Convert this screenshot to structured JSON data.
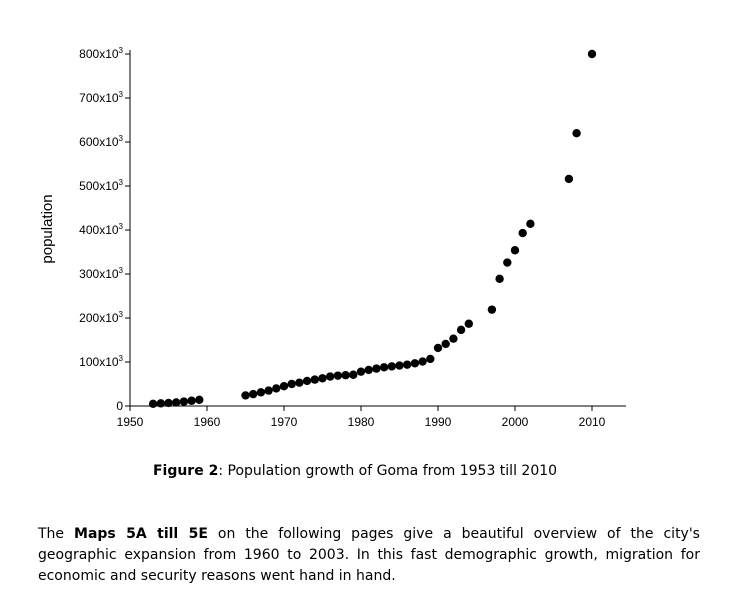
{
  "chart_data": {
    "type": "scatter",
    "title": "",
    "xlabel": "",
    "ylabel": "population",
    "xlim": [
      1950,
      2015
    ],
    "ylim": [
      0,
      800000
    ],
    "grid": false,
    "legend": "none",
    "marker_color": "#000000",
    "x_ticks": [
      1950,
      1960,
      1970,
      1980,
      1990,
      2000,
      2010
    ],
    "y_ticks": [
      {
        "value": 0,
        "mantissa": "0",
        "suffix": ""
      },
      {
        "value": 100000,
        "mantissa": "100",
        "suffix": "x10"
      },
      {
        "value": 200000,
        "mantissa": "200",
        "suffix": "x10"
      },
      {
        "value": 300000,
        "mantissa": "300",
        "suffix": "x10"
      },
      {
        "value": 400000,
        "mantissa": "400",
        "suffix": "x10"
      },
      {
        "value": 500000,
        "mantissa": "500",
        "suffix": "x10"
      },
      {
        "value": 600000,
        "mantissa": "600",
        "suffix": "x10"
      },
      {
        "value": 700000,
        "mantissa": "700",
        "suffix": "x10"
      },
      {
        "value": 800000,
        "mantissa": "800",
        "suffix": "x10"
      }
    ],
    "y_tick_exponent": "3",
    "points": [
      {
        "x": 1953,
        "y": 5000
      },
      {
        "x": 1954,
        "y": 6000
      },
      {
        "x": 1955,
        "y": 7000
      },
      {
        "x": 1956,
        "y": 8000
      },
      {
        "x": 1957,
        "y": 10000
      },
      {
        "x": 1958,
        "y": 12000
      },
      {
        "x": 1959,
        "y": 14000
      },
      {
        "x": 1965,
        "y": 24000
      },
      {
        "x": 1966,
        "y": 27000
      },
      {
        "x": 1967,
        "y": 31000
      },
      {
        "x": 1968,
        "y": 35000
      },
      {
        "x": 1969,
        "y": 40000
      },
      {
        "x": 1970,
        "y": 45000
      },
      {
        "x": 1971,
        "y": 50000
      },
      {
        "x": 1972,
        "y": 53000
      },
      {
        "x": 1973,
        "y": 57000
      },
      {
        "x": 1974,
        "y": 60000
      },
      {
        "x": 1975,
        "y": 63000
      },
      {
        "x": 1976,
        "y": 67000
      },
      {
        "x": 1977,
        "y": 69000
      },
      {
        "x": 1978,
        "y": 70000
      },
      {
        "x": 1979,
        "y": 71000
      },
      {
        "x": 1980,
        "y": 78000
      },
      {
        "x": 1981,
        "y": 82000
      },
      {
        "x": 1982,
        "y": 85000
      },
      {
        "x": 1983,
        "y": 88000
      },
      {
        "x": 1984,
        "y": 90000
      },
      {
        "x": 1985,
        "y": 92000
      },
      {
        "x": 1986,
        "y": 94000
      },
      {
        "x": 1987,
        "y": 97000
      },
      {
        "x": 1988,
        "y": 101000
      },
      {
        "x": 1989,
        "y": 107000
      },
      {
        "x": 1990,
        "y": 132000
      },
      {
        "x": 1991,
        "y": 141000
      },
      {
        "x": 1992,
        "y": 153000
      },
      {
        "x": 1993,
        "y": 173000
      },
      {
        "x": 1994,
        "y": 187000
      },
      {
        "x": 1997,
        "y": 219000
      },
      {
        "x": 1998,
        "y": 289000
      },
      {
        "x": 1999,
        "y": 326000
      },
      {
        "x": 2000,
        "y": 354000
      },
      {
        "x": 2001,
        "y": 393000
      },
      {
        "x": 2002,
        "y": 414000
      },
      {
        "x": 2007,
        "y": 516000
      },
      {
        "x": 2008,
        "y": 620000
      },
      {
        "x": 2010,
        "y": 800000
      }
    ]
  },
  "caption": {
    "label": "Figure 2",
    "text": ": Population growth of Goma from 1953 till 2010"
  },
  "paragraph": {
    "intro": "The ",
    "bold": "Maps 5A till 5E",
    "rest": " on the following pages give a beautiful overview of the city's geographic expansion from 1960 to 2003.  In this fast demographic growth, migration for economic and security reasons went hand in hand."
  }
}
